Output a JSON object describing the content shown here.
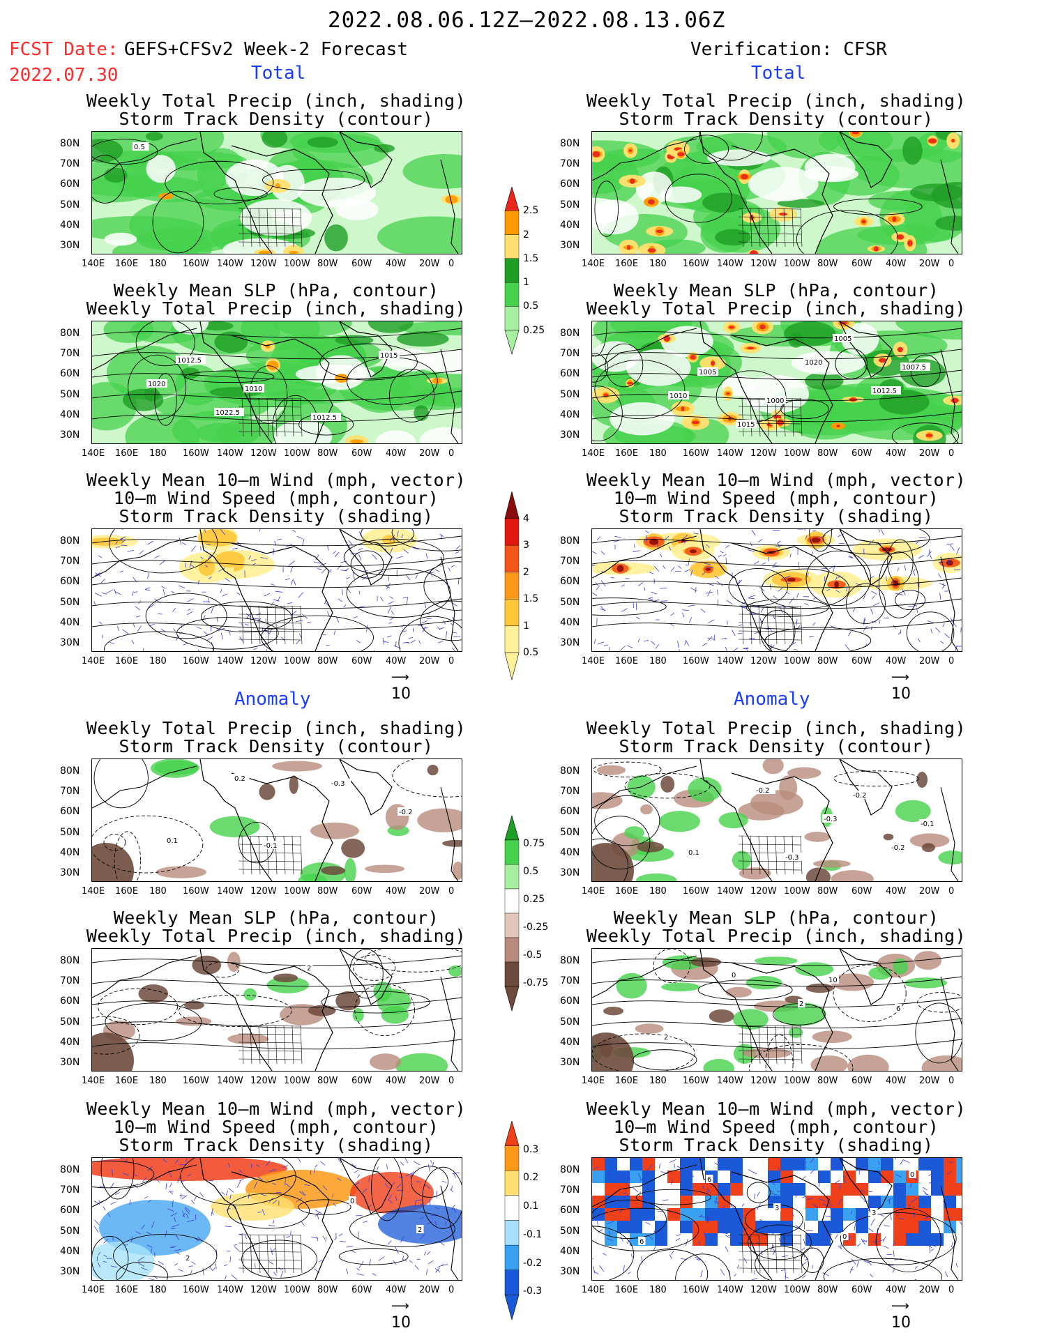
{
  "header": {
    "period": "2022.08.06.12Z–2022.08.13.06Z",
    "fcst_label": "FCST Date:",
    "fcst_model": "GEFS+CFSv2 Week-2 Forecast",
    "fcst_date": "2022.07.30",
    "verification": "Verification: CFSR",
    "total_label": "Total",
    "anomaly_label": "Anomaly"
  },
  "titles": {
    "precip_track": [
      "Weekly Total Precip (inch, shading)",
      "Storm Track Density (contour)"
    ],
    "slp_precip": [
      "Weekly Mean SLP (hPa, contour)",
      "Weekly Total Precip (inch, shading)"
    ],
    "wind": [
      "Weekly Mean 10–m Wind (mph, vector)",
      "10–m Wind Speed (mph, contour)",
      "Storm Track Density (shading)"
    ]
  },
  "axes": {
    "lat_ticks": [
      "80N",
      "70N",
      "60N",
      "50N",
      "40N",
      "30N"
    ],
    "lon_ticks": [
      "140E",
      "160E",
      "180",
      "160W",
      "140W",
      "120W",
      "100W",
      "80W",
      "60W",
      "40W",
      "20W",
      "0"
    ],
    "vector_ref": "10"
  },
  "colorbars": {
    "precip_total": {
      "labels": [
        "2.5",
        "2",
        "1.5",
        "1",
        "0.5",
        "0.25"
      ],
      "colors": [
        "#e8261c",
        "#ff9a00",
        "#ffe070",
        "#1e9e24",
        "#46d24c",
        "#a6f0a0"
      ]
    },
    "track_total": {
      "labels": [
        "4",
        "3",
        "2",
        "1.5",
        "1",
        "0.5"
      ],
      "colors": [
        "#8c0b0b",
        "#e0180f",
        "#f2561a",
        "#fb9a1a",
        "#ffc63a",
        "#fff09a"
      ]
    },
    "precip_anom": {
      "labels": [
        "0.75",
        "0.5",
        "0.25",
        "-0.25",
        "-0.5",
        "-0.75"
      ],
      "colors": [
        "#1e9e24",
        "#46d24c",
        "#a6f0a0",
        "#ffffff",
        "#e2c6ba",
        "#b88c7c",
        "#6e4a3c"
      ]
    },
    "track_anom": {
      "labels": [
        "0.3",
        "0.2",
        "0.1",
        "-0.1",
        "-0.2",
        "-0.3"
      ],
      "colors": [
        "#f0401a",
        "#fb9a1a",
        "#ffe070",
        "#ffffff",
        "#a8e2fa",
        "#3aa0f0",
        "#1a5ad8"
      ]
    }
  },
  "contour_labels": {
    "f_precip_total": [
      "0.5"
    ],
    "f_slp_total": [
      "1012.5",
      "1010",
      "1012.5",
      "1015",
      "1020",
      "1022.5"
    ],
    "v_slp_total": [
      "1005",
      "1000",
      "1005",
      "1007.5",
      "1010",
      "1015",
      "1020",
      "1012.5"
    ],
    "f_precip_anom": [
      "-0.1",
      "-0.3",
      "-0.2",
      "0.1",
      "0.2"
    ],
    "v_precip_anom": [
      "-0.3",
      "-0.2",
      "-0.1",
      "0.1",
      "-0.2",
      "-0.3",
      "-0.2"
    ],
    "f_slp_anom": [
      "2"
    ],
    "v_slp_anom": [
      "10",
      "6",
      "2",
      "0",
      "2"
    ],
    "f_wind_anom": [
      "0",
      "2",
      "2"
    ],
    "v_wind_anom": [
      "3",
      "6",
      "6",
      "3",
      "0",
      "0"
    ]
  },
  "chart_data": [
    {
      "type": "heatmap",
      "panel": "forecast-total-precip",
      "colorbar": "precip_total"
    },
    {
      "type": "heatmap",
      "panel": "verification-total-precip",
      "colorbar": "precip_total"
    },
    {
      "type": "heatmap",
      "panel": "forecast-total-slp",
      "colorbar": "precip_total"
    },
    {
      "type": "heatmap",
      "panel": "verification-total-slp",
      "colorbar": "precip_total"
    },
    {
      "type": "heatmap",
      "panel": "forecast-total-wind",
      "colorbar": "track_total"
    },
    {
      "type": "heatmap",
      "panel": "verification-total-wind",
      "colorbar": "track_total"
    },
    {
      "type": "heatmap",
      "panel": "forecast-anomaly-precip",
      "colorbar": "precip_anom"
    },
    {
      "type": "heatmap",
      "panel": "verification-anomaly-precip",
      "colorbar": "precip_anom"
    },
    {
      "type": "heatmap",
      "panel": "forecast-anomaly-slp",
      "colorbar": "precip_anom"
    },
    {
      "type": "heatmap",
      "panel": "verification-anomaly-slp",
      "colorbar": "precip_anom"
    },
    {
      "type": "heatmap",
      "panel": "forecast-anomaly-wind",
      "colorbar": "track_anom"
    },
    {
      "type": "heatmap",
      "panel": "verification-anomaly-wind",
      "colorbar": "track_anom"
    }
  ]
}
